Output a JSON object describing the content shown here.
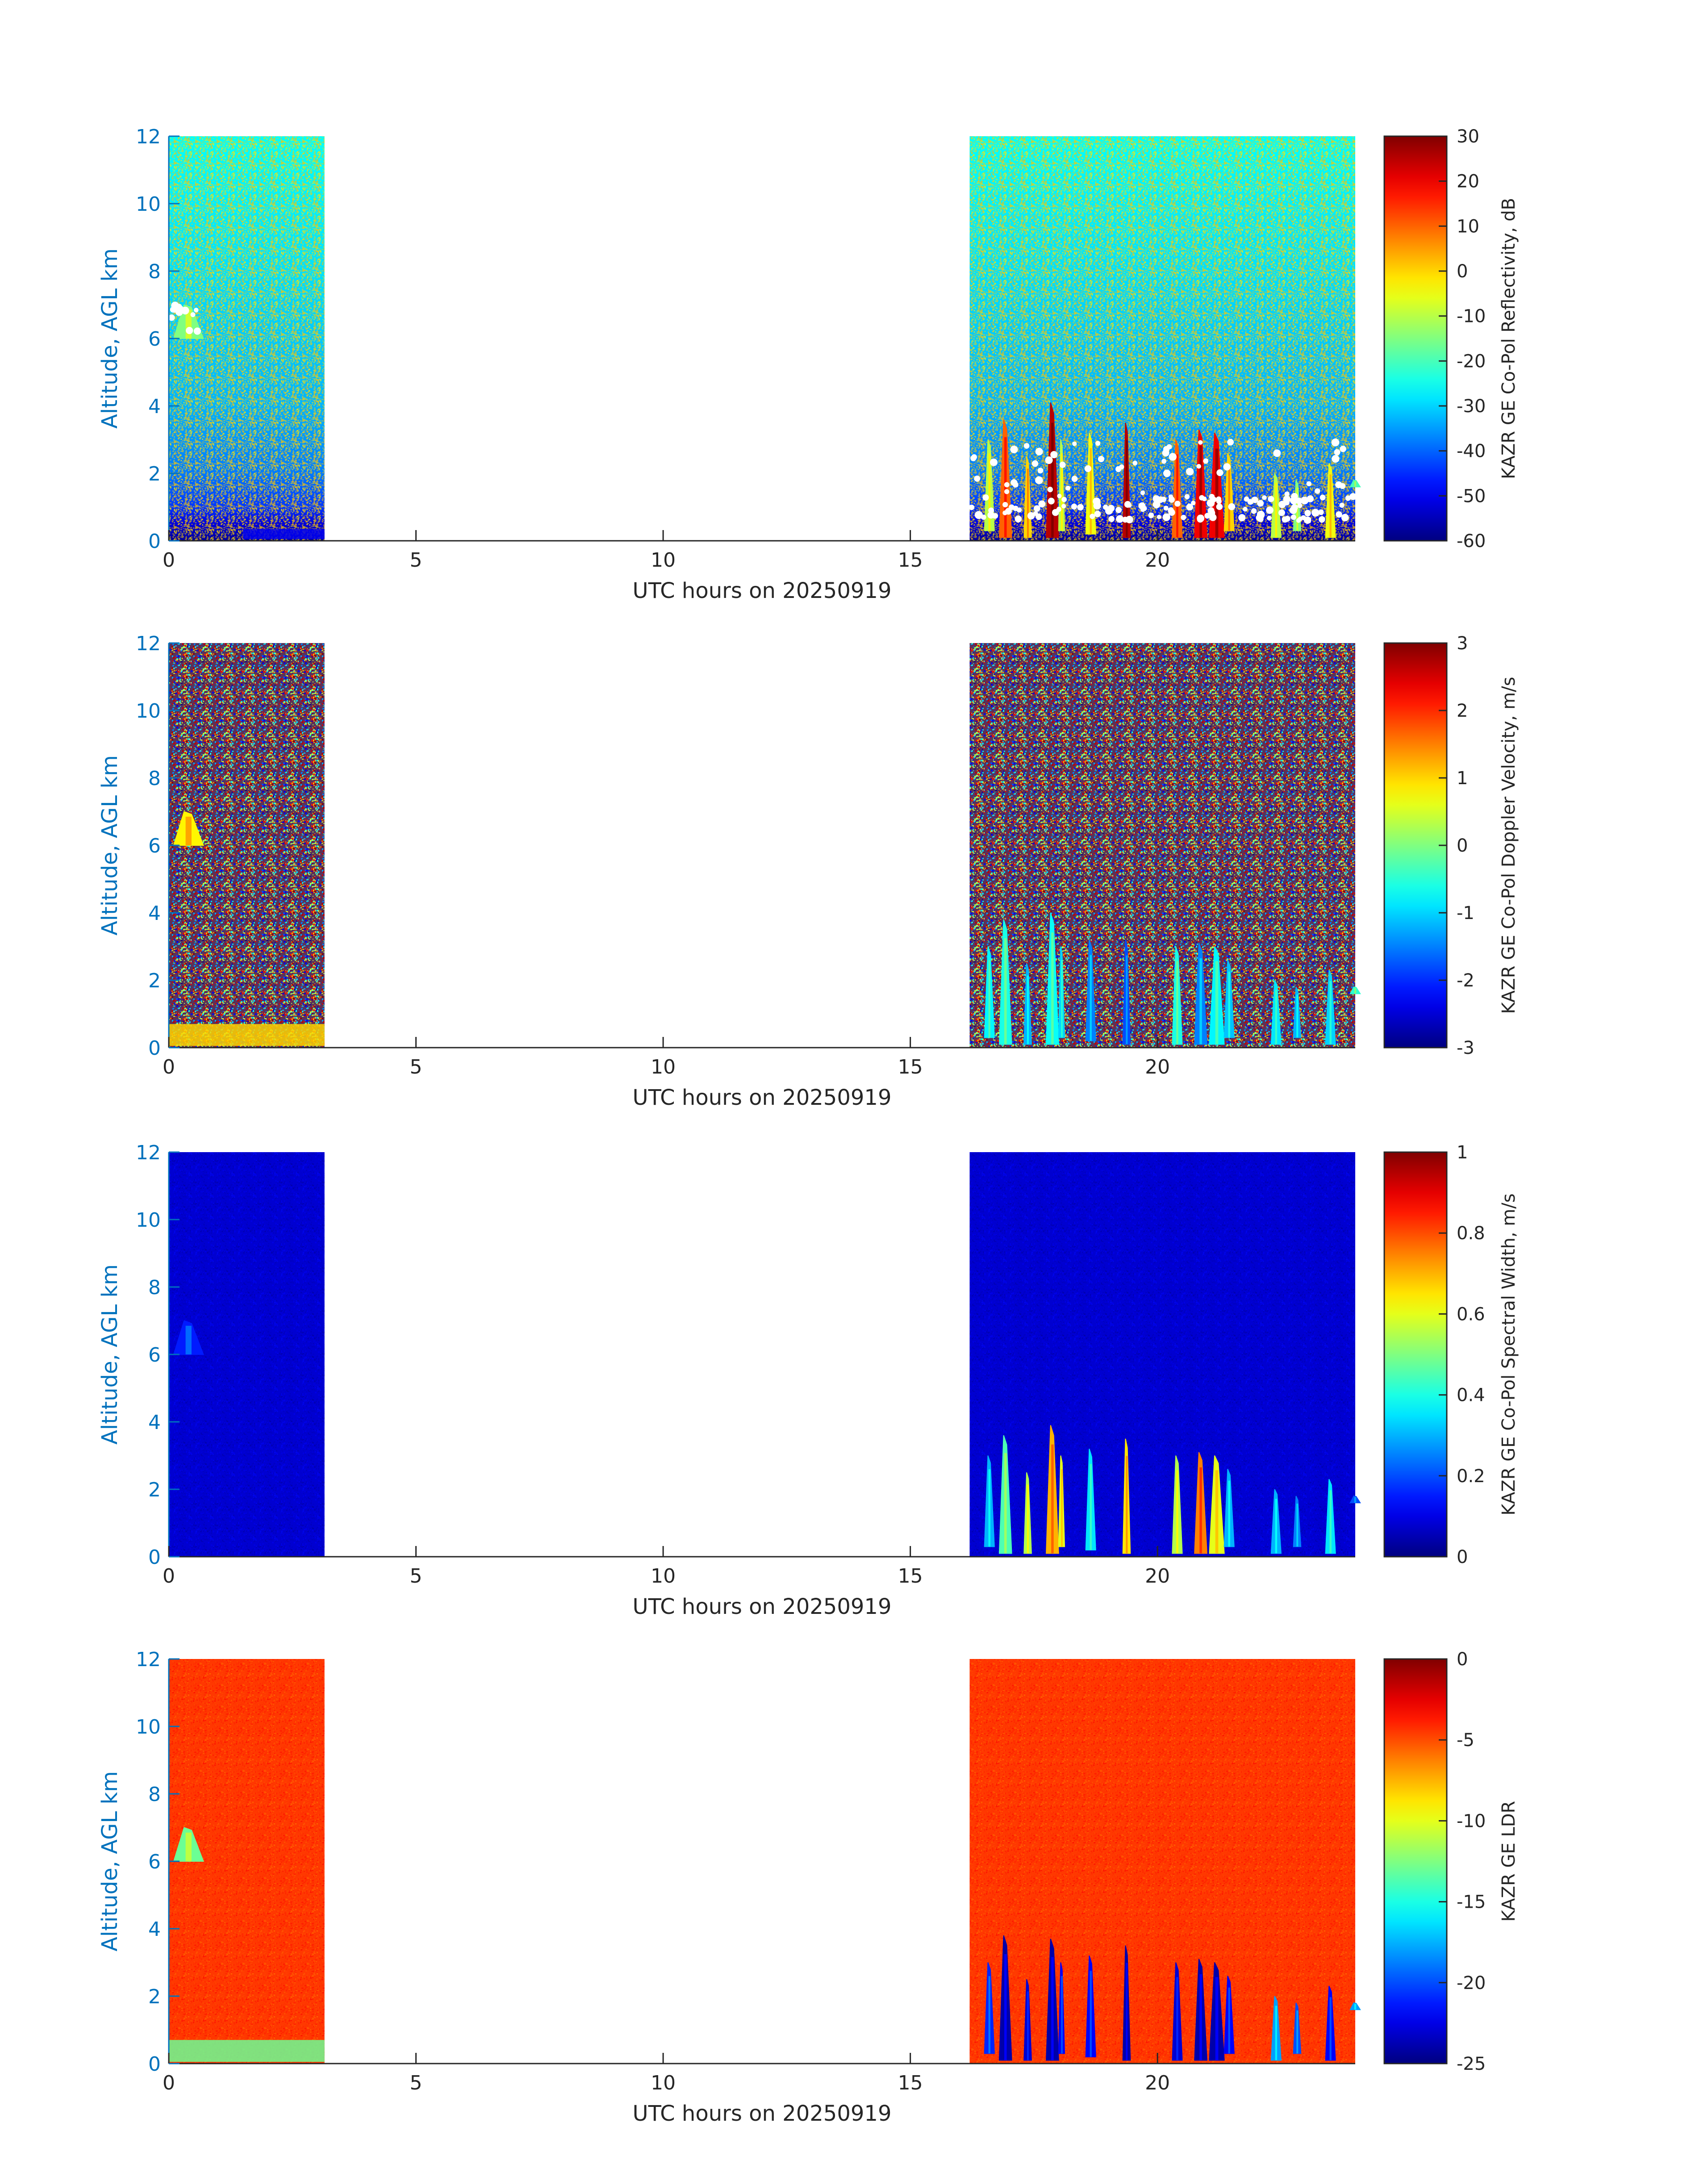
{
  "figure": {
    "xlabel": "UTC hours on 20250919",
    "ylabel": "Altitude, AGL km",
    "axis_color": "#0072BD",
    "frame_color": "#262626"
  },
  "chart_data": [
    {
      "type": "heatmap",
      "title": "",
      "xlabel": "UTC hours on 20250919",
      "ylabel": "Altitude, AGL km",
      "xlim": [
        0,
        24
      ],
      "ylim": [
        0,
        12
      ],
      "xticks": [
        0,
        5,
        10,
        15,
        20
      ],
      "yticks": [
        0,
        2,
        4,
        6,
        8,
        10,
        12
      ],
      "colorbar": {
        "label": "KAZR GE Co-Pol Reflectivity, dB",
        "min": -60,
        "max": 30,
        "ticks": [
          -60,
          -50,
          -40,
          -30,
          -20,
          -10,
          0,
          10,
          20,
          30
        ],
        "colormap": "jet"
      },
      "data_segments": [
        [
          0,
          3.15
        ],
        [
          16.2,
          24
        ]
      ],
      "background_value_by_altitude": [
        [
          0,
          -58
        ],
        [
          0.5,
          -52
        ],
        [
          1,
          -44
        ],
        [
          2,
          -38
        ],
        [
          4,
          -33
        ],
        [
          8,
          -29
        ],
        [
          12,
          -26
        ]
      ],
      "near_surface_low_layer": {
        "x_range": [
          1.5,
          3.15
        ],
        "alt_range": [
          0.05,
          0.35
        ],
        "value": -50
      },
      "echo_features": [
        {
          "time": 0.1,
          "top_km": 7.0,
          "base_km": 6.0,
          "width_h": 0.6,
          "value": -15
        },
        {
          "time": 16.5,
          "top_km": 3.0,
          "base_km": 0.3,
          "width_h": 0.2,
          "value": -10
        },
        {
          "time": 16.8,
          "top_km": 3.6,
          "base_km": 0.1,
          "width_h": 0.25,
          "value": 10
        },
        {
          "time": 17.3,
          "top_km": 2.5,
          "base_km": 0.1,
          "width_h": 0.15,
          "value": 0
        },
        {
          "time": 17.75,
          "top_km": 4.1,
          "base_km": 0.1,
          "width_h": 0.25,
          "value": 25
        },
        {
          "time": 18.0,
          "top_km": 3.0,
          "base_km": 0.3,
          "width_h": 0.12,
          "value": -10
        },
        {
          "time": 18.55,
          "top_km": 3.2,
          "base_km": 0.2,
          "width_h": 0.2,
          "value": -5
        },
        {
          "time": 19.3,
          "top_km": 3.5,
          "base_km": 0.1,
          "width_h": 0.15,
          "value": 25
        },
        {
          "time": 20.3,
          "top_km": 3.0,
          "base_km": 0.1,
          "width_h": 0.2,
          "value": 10
        },
        {
          "time": 20.75,
          "top_km": 3.3,
          "base_km": 0.1,
          "width_h": 0.25,
          "value": 20
        },
        {
          "time": 21.05,
          "top_km": 3.2,
          "base_km": 0.1,
          "width_h": 0.3,
          "value": 20
        },
        {
          "time": 21.35,
          "top_km": 2.6,
          "base_km": 0.3,
          "width_h": 0.2,
          "value": 0
        },
        {
          "time": 22.3,
          "top_km": 2.0,
          "base_km": 0.1,
          "width_h": 0.2,
          "value": -10
        },
        {
          "time": 22.75,
          "top_km": 1.8,
          "base_km": 0.3,
          "width_h": 0.15,
          "value": -15
        },
        {
          "time": 23.4,
          "top_km": 2.3,
          "base_km": 0.1,
          "width_h": 0.2,
          "value": -5
        },
        {
          "time": 23.9,
          "top_km": 1.8,
          "base_km": 1.6,
          "width_h": 0.2,
          "value": -20
        }
      ],
      "cloud_base_markers": {
        "color": "#ffffff",
        "alt_range_km": [
          0.6,
          3.0
        ],
        "x_ranges": [
          [
            0.0,
            0.6
          ],
          [
            16.2,
            24
          ]
        ]
      }
    },
    {
      "type": "heatmap",
      "title": "",
      "xlabel": "UTC hours on 20250919",
      "ylabel": "Altitude, AGL km",
      "xlim": [
        0,
        24
      ],
      "ylim": [
        0,
        12
      ],
      "xticks": [
        0,
        5,
        10,
        15,
        20
      ],
      "yticks": [
        0,
        2,
        4,
        6,
        8,
        10,
        12
      ],
      "colorbar": {
        "label": "KAZR GE Co-Pol Doppler Velocity, m/s",
        "min": -3,
        "max": 3,
        "ticks": [
          -3,
          -2,
          -1,
          0,
          1,
          2,
          3
        ],
        "colormap": "jet"
      },
      "data_segments": [
        [
          0,
          3.15
        ],
        [
          16.2,
          24
        ]
      ],
      "background": "random noise spanning full color range",
      "near_surface_low_layer": {
        "x_range": [
          0,
          3.15
        ],
        "alt_range": [
          0.05,
          0.7
        ],
        "value": 1
      },
      "echo_features": [
        {
          "time": 0.1,
          "top_km": 7.0,
          "base_km": 6.0,
          "width_h": 0.6,
          "value": 0.8
        },
        {
          "time": 16.5,
          "top_km": 3.0,
          "base_km": 0.3,
          "width_h": 0.2,
          "value": -0.8
        },
        {
          "time": 16.8,
          "top_km": 3.8,
          "base_km": 0.1,
          "width_h": 0.25,
          "value": -0.6
        },
        {
          "time": 17.3,
          "top_km": 2.5,
          "base_km": 0.1,
          "width_h": 0.15,
          "value": -1.2
        },
        {
          "time": 17.75,
          "top_km": 4.0,
          "base_km": 0.1,
          "width_h": 0.25,
          "value": -0.7
        },
        {
          "time": 18.0,
          "top_km": 3.0,
          "base_km": 0.3,
          "width_h": 0.12,
          "value": -1.0
        },
        {
          "time": 18.55,
          "top_km": 3.2,
          "base_km": 0.2,
          "width_h": 0.2,
          "value": -1.5
        },
        {
          "time": 19.3,
          "top_km": 3.2,
          "base_km": 0.1,
          "width_h": 0.15,
          "value": -1.8
        },
        {
          "time": 20.3,
          "top_km": 3.0,
          "base_km": 0.1,
          "width_h": 0.2,
          "value": -0.6
        },
        {
          "time": 20.75,
          "top_km": 3.1,
          "base_km": 0.1,
          "width_h": 0.25,
          "value": -1.5
        },
        {
          "time": 21.05,
          "top_km": 3.0,
          "base_km": 0.1,
          "width_h": 0.3,
          "value": -0.8
        },
        {
          "time": 21.35,
          "top_km": 2.6,
          "base_km": 0.3,
          "width_h": 0.2,
          "value": -1.1
        },
        {
          "time": 22.3,
          "top_km": 2.0,
          "base_km": 0.1,
          "width_h": 0.2,
          "value": -0.9
        },
        {
          "time": 22.75,
          "top_km": 1.8,
          "base_km": 0.3,
          "width_h": 0.15,
          "value": -1.2
        },
        {
          "time": 23.4,
          "top_km": 2.3,
          "base_km": 0.1,
          "width_h": 0.2,
          "value": -1.0
        },
        {
          "time": 23.9,
          "top_km": 1.8,
          "base_km": 1.6,
          "width_h": 0.2,
          "value": -0.5
        }
      ]
    },
    {
      "type": "heatmap",
      "title": "",
      "xlabel": "UTC hours on 20250919",
      "ylabel": "Altitude, AGL km",
      "xlim": [
        0,
        24
      ],
      "ylim": [
        0,
        12
      ],
      "xticks": [
        0,
        5,
        10,
        15,
        20
      ],
      "yticks": [
        0,
        2,
        4,
        6,
        8,
        10,
        12
      ],
      "colorbar": {
        "label": "KAZR GE Co-Pol Spectral Width, m/s",
        "min": 0,
        "max": 1,
        "ticks": [
          0,
          0.2,
          0.4,
          0.6,
          0.8,
          1
        ],
        "colormap": "jet"
      },
      "data_segments": [
        [
          0,
          3.15
        ],
        [
          16.2,
          24
        ]
      ],
      "background_value": 0.08,
      "echo_features": [
        {
          "time": 0.1,
          "top_km": 7.0,
          "base_km": 6.0,
          "width_h": 0.6,
          "value": 0.15
        },
        {
          "time": 16.5,
          "top_km": 3.0,
          "base_km": 0.3,
          "width_h": 0.2,
          "value": 0.3
        },
        {
          "time": 16.8,
          "top_km": 3.6,
          "base_km": 0.1,
          "width_h": 0.25,
          "value": 0.45
        },
        {
          "time": 17.3,
          "top_km": 2.5,
          "base_km": 0.1,
          "width_h": 0.15,
          "value": 0.55
        },
        {
          "time": 17.75,
          "top_km": 3.9,
          "base_km": 0.1,
          "width_h": 0.25,
          "value": 0.7
        },
        {
          "time": 18.0,
          "top_km": 3.0,
          "base_km": 0.3,
          "width_h": 0.12,
          "value": 0.6
        },
        {
          "time": 18.55,
          "top_km": 3.2,
          "base_km": 0.2,
          "width_h": 0.2,
          "value": 0.35
        },
        {
          "time": 19.3,
          "top_km": 3.5,
          "base_km": 0.1,
          "width_h": 0.15,
          "value": 0.65
        },
        {
          "time": 20.3,
          "top_km": 3.0,
          "base_km": 0.1,
          "width_h": 0.2,
          "value": 0.55
        },
        {
          "time": 20.75,
          "top_km": 3.1,
          "base_km": 0.1,
          "width_h": 0.25,
          "value": 0.75
        },
        {
          "time": 21.05,
          "top_km": 3.0,
          "base_km": 0.1,
          "width_h": 0.3,
          "value": 0.6
        },
        {
          "time": 21.35,
          "top_km": 2.6,
          "base_km": 0.3,
          "width_h": 0.2,
          "value": 0.3
        },
        {
          "time": 22.3,
          "top_km": 2.0,
          "base_km": 0.1,
          "width_h": 0.2,
          "value": 0.3
        },
        {
          "time": 22.75,
          "top_km": 1.8,
          "base_km": 0.3,
          "width_h": 0.15,
          "value": 0.25
        },
        {
          "time": 23.4,
          "top_km": 2.3,
          "base_km": 0.1,
          "width_h": 0.2,
          "value": 0.35
        },
        {
          "time": 23.9,
          "top_km": 1.8,
          "base_km": 1.6,
          "width_h": 0.2,
          "value": 0.2
        }
      ]
    },
    {
      "type": "heatmap",
      "title": "",
      "xlabel": "UTC hours on 20250919",
      "ylabel": "Altitude, AGL km",
      "xlim": [
        0,
        24
      ],
      "ylim": [
        0,
        12
      ],
      "xticks": [
        0,
        5,
        10,
        15,
        20
      ],
      "yticks": [
        0,
        2,
        4,
        6,
        8,
        10,
        12
      ],
      "colorbar": {
        "label": "KAZR GE LDR",
        "min": -25,
        "max": 0,
        "ticks": [
          -25,
          -20,
          -15,
          -10,
          -5,
          0
        ],
        "colormap": "jet"
      },
      "data_segments": [
        [
          0,
          3.15
        ],
        [
          16.2,
          24
        ]
      ],
      "background_value": -4.5,
      "near_surface_low_layer": {
        "x_range": [
          0,
          3.15
        ],
        "alt_range": [
          0.05,
          0.7
        ],
        "value": -13
      },
      "echo_features": [
        {
          "time": 0.1,
          "top_km": 7.0,
          "base_km": 6.0,
          "width_h": 0.6,
          "value": -13
        },
        {
          "time": 16.5,
          "top_km": 3.0,
          "base_km": 0.3,
          "width_h": 0.2,
          "value": -21
        },
        {
          "time": 16.8,
          "top_km": 3.8,
          "base_km": 0.1,
          "width_h": 0.25,
          "value": -24
        },
        {
          "time": 17.3,
          "top_km": 2.5,
          "base_km": 0.1,
          "width_h": 0.15,
          "value": -23
        },
        {
          "time": 17.75,
          "top_km": 3.7,
          "base_km": 0.1,
          "width_h": 0.25,
          "value": -24
        },
        {
          "time": 18.0,
          "top_km": 3.0,
          "base_km": 0.3,
          "width_h": 0.12,
          "value": -22
        },
        {
          "time": 18.55,
          "top_km": 3.2,
          "base_km": 0.2,
          "width_h": 0.2,
          "value": -22
        },
        {
          "time": 19.3,
          "top_km": 3.5,
          "base_km": 0.1,
          "width_h": 0.15,
          "value": -24
        },
        {
          "time": 20.3,
          "top_km": 3.0,
          "base_km": 0.1,
          "width_h": 0.2,
          "value": -23
        },
        {
          "time": 20.75,
          "top_km": 3.1,
          "base_km": 0.1,
          "width_h": 0.25,
          "value": -24
        },
        {
          "time": 21.05,
          "top_km": 3.0,
          "base_km": 0.1,
          "width_h": 0.3,
          "value": -24
        },
        {
          "time": 21.35,
          "top_km": 2.6,
          "base_km": 0.3,
          "width_h": 0.2,
          "value": -22
        },
        {
          "time": 22.3,
          "top_km": 2.0,
          "base_km": 0.1,
          "width_h": 0.2,
          "value": -18
        },
        {
          "time": 22.75,
          "top_km": 1.8,
          "base_km": 0.3,
          "width_h": 0.15,
          "value": -20
        },
        {
          "time": 23.4,
          "top_km": 2.3,
          "base_km": 0.1,
          "width_h": 0.2,
          "value": -22
        },
        {
          "time": 23.9,
          "top_km": 1.8,
          "base_km": 1.6,
          "width_h": 0.2,
          "value": -18
        }
      ]
    }
  ]
}
